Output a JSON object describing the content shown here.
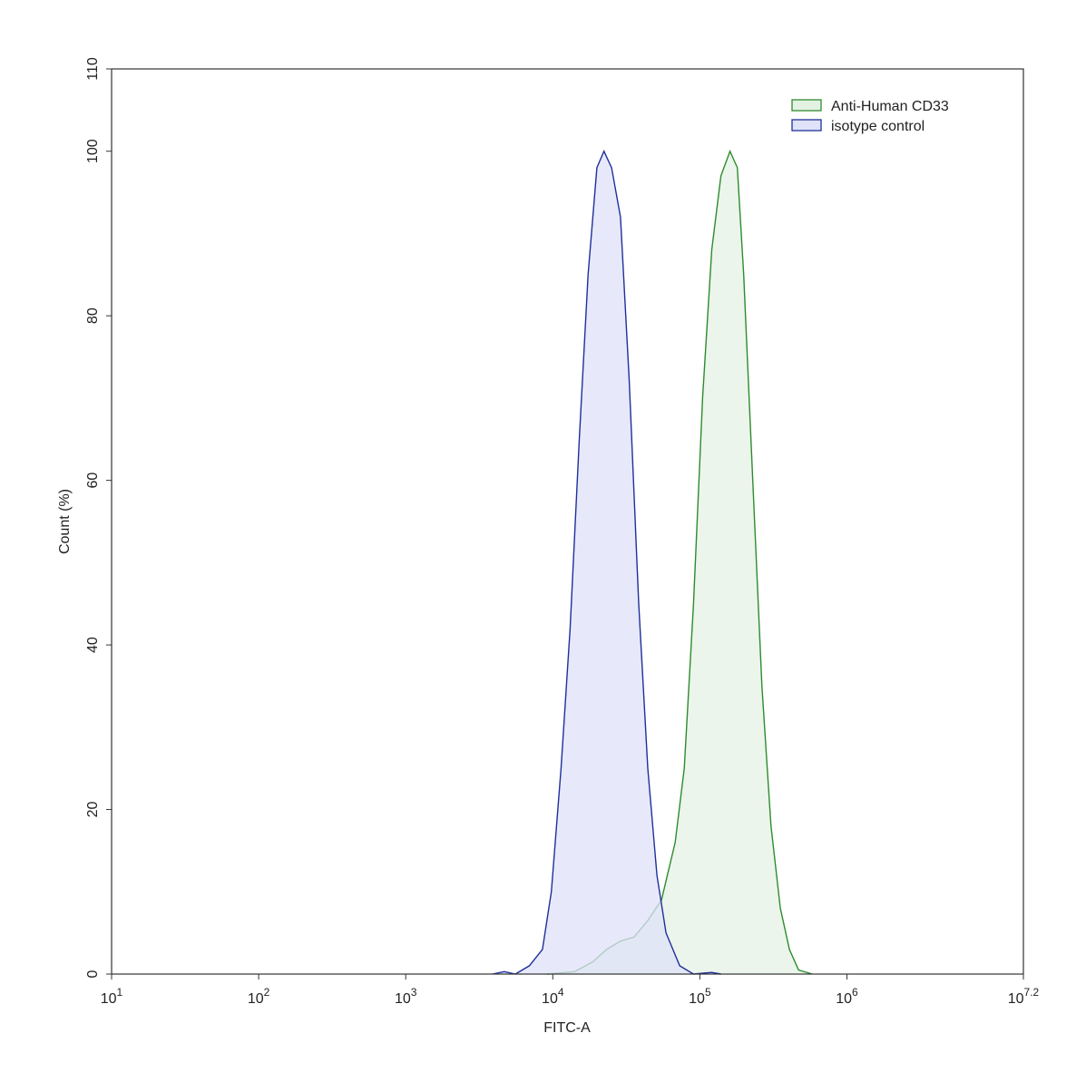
{
  "chart_data": {
    "type": "histogram-overlay",
    "xlabel": "FITC-A",
    "ylabel": "Count  (%)",
    "xscale": "log",
    "xlim": [
      10,
      15848931.92
    ],
    "ylim": [
      0,
      110
    ],
    "xticks": [
      {
        "value": 10,
        "label": "10",
        "exponent": "1"
      },
      {
        "value": 100,
        "label": "10",
        "exponent": "2"
      },
      {
        "value": 1000,
        "label": "10",
        "exponent": "3"
      },
      {
        "value": 10000,
        "label": "10",
        "exponent": "4"
      },
      {
        "value": 100000,
        "label": "10",
        "exponent": "5"
      },
      {
        "value": 1000000,
        "label": "10",
        "exponent": "6"
      },
      {
        "value": 15848931.92,
        "label": "10",
        "exponent": "7.2"
      }
    ],
    "yticks": [
      0,
      20,
      40,
      60,
      80,
      100,
      110
    ],
    "legend": "top-right",
    "series": [
      {
        "name": "Anti-Human CD33",
        "color": "#2e8b2e",
        "fill": "#e4f2e4",
        "x": [
          9120,
          14090,
          18750,
          23230,
          28840,
          35730,
          44260,
          54830,
          67920,
          78340,
          90570,
          104400,
          120500,
          139000,
          160300,
          179800,
          198700,
          229100,
          264300,
          304800,
          352400,
          406400,
          468800,
          580800
        ],
        "values": [
          0,
          0.3,
          1.5,
          3,
          4,
          4.5,
          6.5,
          9,
          16,
          25,
          45,
          70,
          88,
          97,
          100,
          98,
          85,
          60,
          35,
          18,
          8,
          3,
          0.5,
          0
        ]
      },
      {
        "name": "isotype control",
        "color": "#1f2f9b",
        "fill": "#dfe2f8",
        "x": [
          3890,
          4680,
          5560,
          6920,
          8510,
          9770,
          11380,
          13120,
          15140,
          17380,
          19950,
          22280,
          25120,
          28840,
          33110,
          38370,
          44260,
          51050,
          58880,
          72940,
          90570,
          120200,
          139000
        ],
        "values": [
          0,
          0.3,
          0,
          1,
          3,
          10,
          25,
          42,
          65,
          85,
          98,
          100,
          98,
          92,
          72,
          45,
          25,
          12,
          5,
          1,
          0,
          0.2,
          0
        ]
      }
    ]
  }
}
